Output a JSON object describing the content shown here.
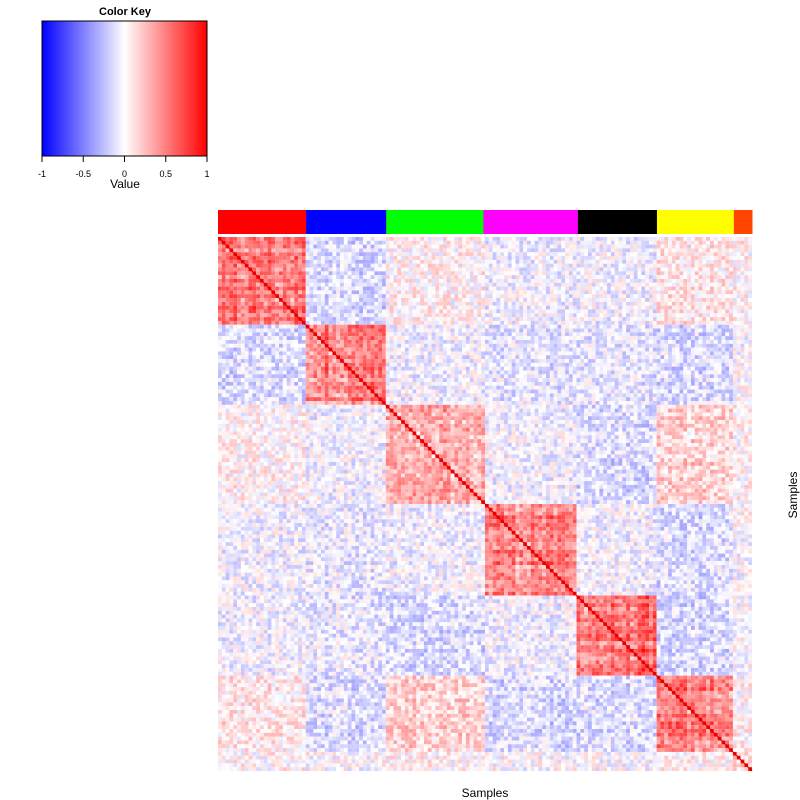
{
  "chart_data": {
    "type": "heatmap",
    "color_key": {
      "title": "Color Key",
      "xlabel": "Value",
      "range": [
        -1,
        1
      ],
      "ticks": [
        -1,
        -0.5,
        0,
        0.5,
        1
      ],
      "tick_labels": [
        "-1",
        "-0.5",
        "0",
        "0.5",
        "1"
      ],
      "colors": {
        "low": "#0000ff",
        "mid": "#ffffff",
        "high": "#ff0000"
      }
    },
    "xlabel": "Samples",
    "ylabel": "Samples",
    "groups": [
      {
        "color": "#ff0000",
        "fraction": 0.165
      },
      {
        "color": "#0000ff",
        "fraction": 0.15
      },
      {
        "color": "#00ff00",
        "fraction": 0.182
      },
      {
        "color": "#ff00ff",
        "fraction": 0.177
      },
      {
        "color": "#000000",
        "fraction": 0.148
      },
      {
        "color": "#ffff00",
        "fraction": 0.144
      },
      {
        "color": "#ff4500",
        "fraction": 0.034
      }
    ],
    "block_correlation": [
      [
        0.55,
        -0.15,
        0.05,
        -0.05,
        -0.05,
        0.1,
        0.05
      ],
      [
        -0.15,
        0.55,
        -0.05,
        -0.1,
        -0.1,
        -0.15,
        0.0
      ],
      [
        0.05,
        -0.05,
        0.35,
        -0.05,
        -0.15,
        0.2,
        0.05
      ],
      [
        -0.05,
        -0.1,
        -0.05,
        0.55,
        -0.05,
        -0.15,
        0.0
      ],
      [
        -0.05,
        -0.1,
        -0.15,
        -0.05,
        0.6,
        -0.15,
        0.0
      ],
      [
        0.1,
        -0.15,
        0.2,
        -0.15,
        -0.15,
        0.55,
        0.05
      ],
      [
        0.05,
        0.0,
        0.05,
        0.0,
        0.0,
        0.05,
        0.2
      ]
    ],
    "diagonal_value": 1,
    "legend": "top-left",
    "grid": false
  }
}
